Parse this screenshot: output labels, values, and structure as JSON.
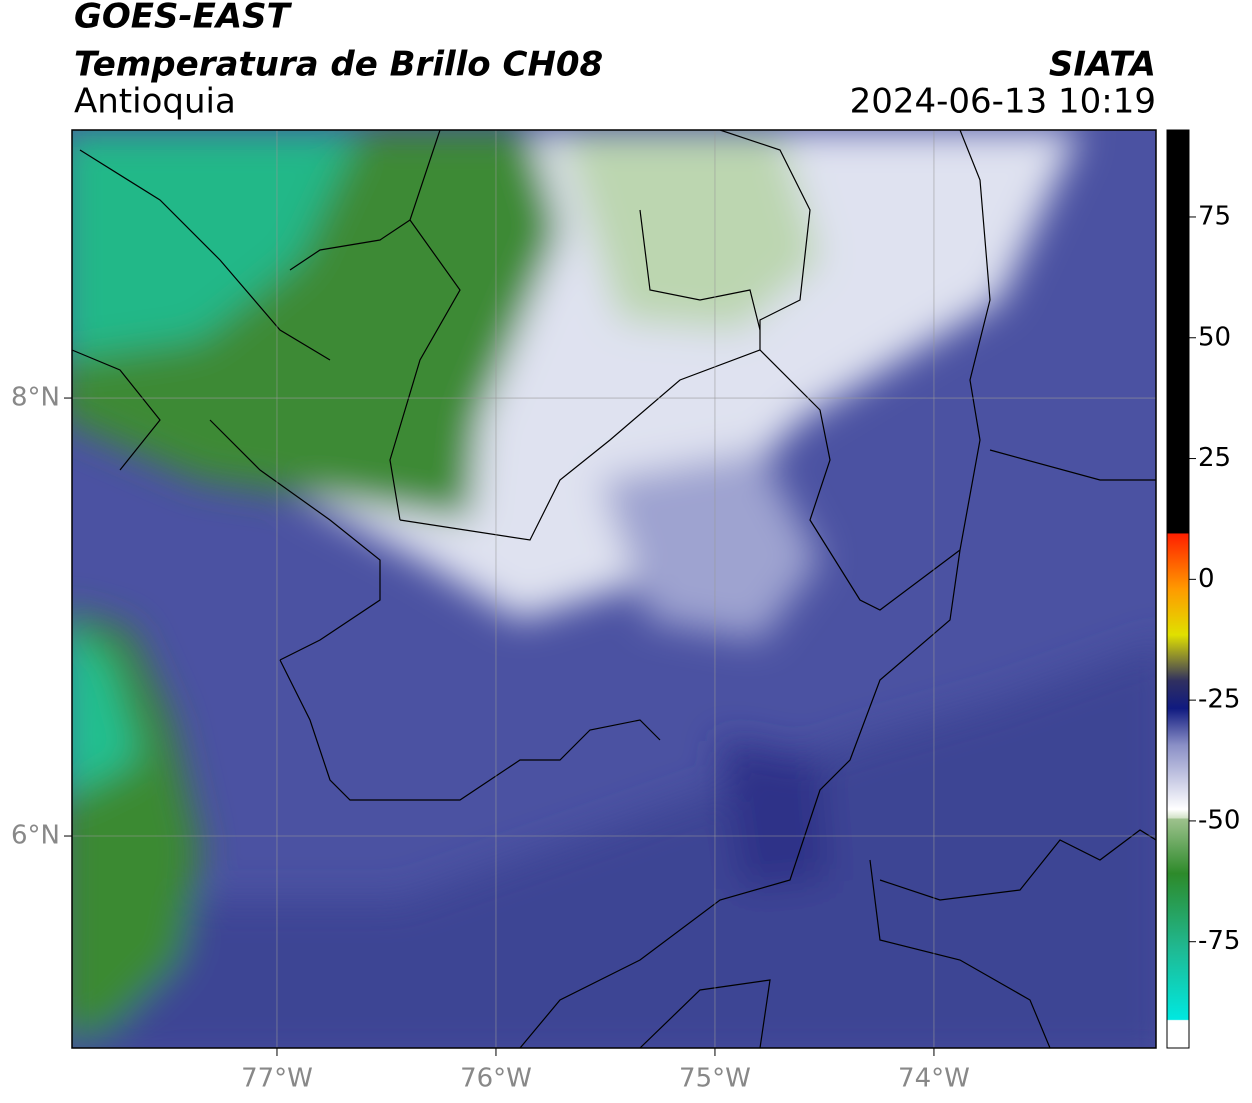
{
  "header": {
    "title": "GOES-EAST",
    "subtitle": "Temperatura de Brillo CH08",
    "region": "Antioquia",
    "source": "SIATA",
    "datetime": "2024-06-13 10:19"
  },
  "map": {
    "xlim": [
      -77.936,
      -72.986
    ],
    "ylim": [
      5.032,
      9.224
    ],
    "xticks": [
      {
        "value": -77,
        "label": "77°W"
      },
      {
        "value": -76,
        "label": "76°W"
      },
      {
        "value": -75,
        "label": "75°W"
      },
      {
        "value": -74,
        "label": "74°W"
      }
    ],
    "yticks": [
      {
        "value": 6,
        "label": "6°N"
      },
      {
        "value": 8,
        "label": "8°N"
      }
    ],
    "grid": true
  },
  "colorbar": {
    "lim": [
      -97,
      93
    ],
    "ticks": [
      -75,
      -50,
      -25,
      0,
      25,
      50,
      75
    ]
  }
}
